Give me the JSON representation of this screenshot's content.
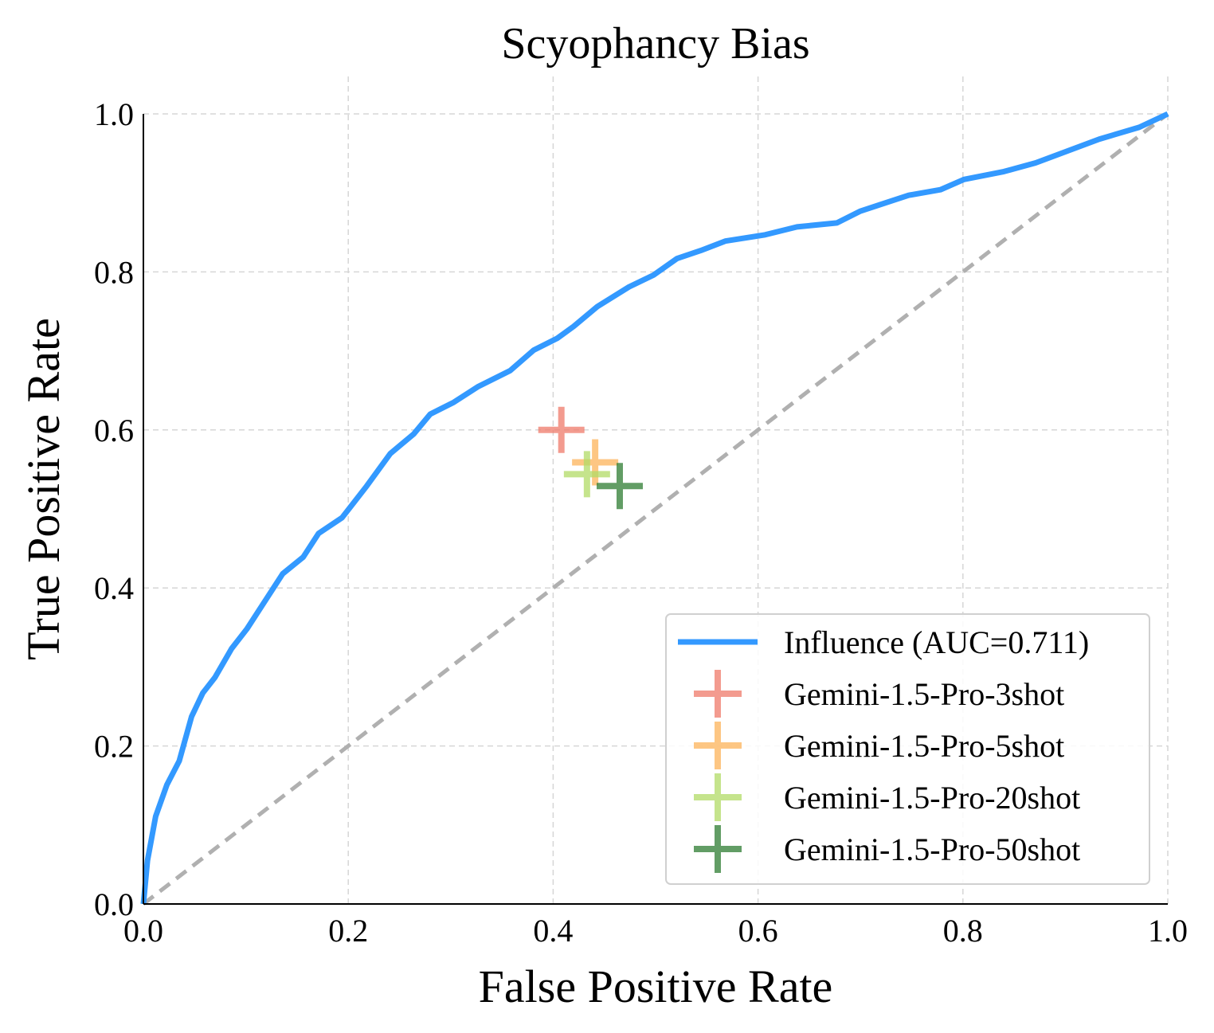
{
  "chart_data": {
    "type": "line",
    "title": "Scyophancy Bias",
    "xlabel": "False Positive Rate",
    "ylabel": "True Positive Rate",
    "xlim": [
      0,
      1
    ],
    "ylim": [
      0,
      1
    ],
    "xticks": [
      "0.0",
      "0.2",
      "0.4",
      "0.6",
      "0.8",
      "1.0"
    ],
    "yticks": [
      "0.0",
      "0.2",
      "0.4",
      "0.6",
      "0.8",
      "1.0"
    ],
    "grid": true,
    "legend_position": "bottom-right",
    "series": [
      {
        "name": "Influence (AUC=0.711)",
        "kind": "line",
        "color": "#3399ff",
        "x": [
          0,
          0.004,
          0.012,
          0.023,
          0.035,
          0.047,
          0.058,
          0.07,
          0.086,
          0.101,
          0.121,
          0.136,
          0.156,
          0.171,
          0.194,
          0.218,
          0.241,
          0.264,
          0.28,
          0.303,
          0.327,
          0.358,
          0.381,
          0.404,
          0.42,
          0.443,
          0.474,
          0.498,
          0.521,
          0.544,
          0.568,
          0.607,
          0.638,
          0.677,
          0.7,
          0.747,
          0.778,
          0.801,
          0.84,
          0.871,
          0.902,
          0.933,
          0.972,
          1.0
        ],
        "y": [
          0,
          0.055,
          0.111,
          0.151,
          0.181,
          0.237,
          0.267,
          0.287,
          0.323,
          0.348,
          0.388,
          0.418,
          0.439,
          0.469,
          0.489,
          0.529,
          0.57,
          0.595,
          0.62,
          0.635,
          0.655,
          0.675,
          0.701,
          0.716,
          0.731,
          0.756,
          0.781,
          0.796,
          0.817,
          0.827,
          0.839,
          0.847,
          0.857,
          0.862,
          0.877,
          0.897,
          0.904,
          0.917,
          0.927,
          0.938,
          0.953,
          0.968,
          0.983,
          1.0
        ]
      },
      {
        "name": "Gemini-1.5-Pro-3shot",
        "kind": "marker",
        "color": "#f07a6a",
        "x": 0.408,
        "y": 0.6
      },
      {
        "name": "Gemini-1.5-Pro-5shot",
        "kind": "marker",
        "color": "#fdb35a",
        "x": 0.441,
        "y": 0.559
      },
      {
        "name": "Gemini-1.5-Pro-20shot",
        "kind": "marker",
        "color": "#b2dc66",
        "x": 0.433,
        "y": 0.544
      },
      {
        "name": "Gemini-1.5-Pro-50shot",
        "kind": "marker",
        "color": "#2e7d32",
        "x": 0.465,
        "y": 0.529
      }
    ],
    "reference_line": {
      "x": [
        0,
        1
      ],
      "y": [
        0,
        1
      ],
      "color": "#b0b0b0",
      "style": "dashed"
    }
  }
}
